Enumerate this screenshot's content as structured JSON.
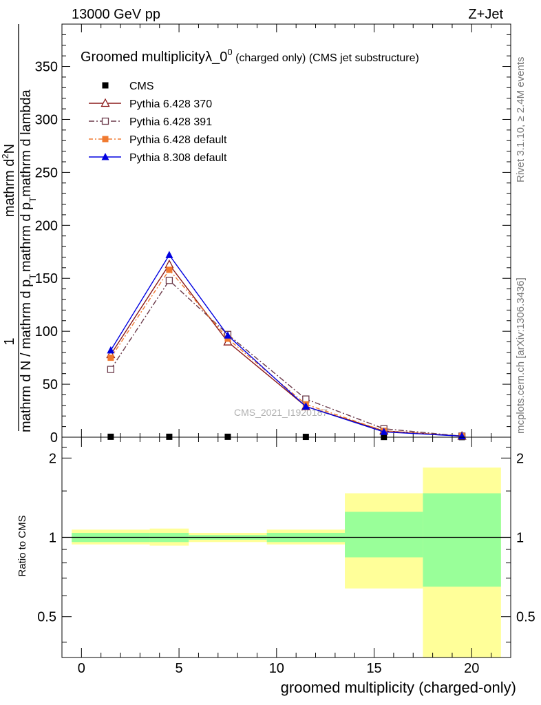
{
  "header": {
    "energy_label": "13000 GeV pp",
    "process_label": "Z+Jet"
  },
  "side_labels": {
    "rivet": "Rivet 3.1.10, ≥ 2.4M events",
    "mcplots": "mcplots.cern.ch [arXiv:1306.3436]"
  },
  "chart_data": [
    {
      "type": "line",
      "title_main": "Groomed multiplicityλ_0",
      "title_sup": "0",
      "title_tail": " (charged only) (CMS jet substructure)",
      "watermark": "CMS_2021_I1920187",
      "ylabel_parts": [
        "1",
        "mathrm d N / mathrm d p",
        "T",
        "mathrm d p",
        "T",
        "mathrm d lambda",
        "mathrm d",
        "2",
        "N"
      ],
      "x": [
        1.5,
        4.5,
        7.5,
        11.5,
        15.5,
        19.5
      ],
      "xlim": [
        -1,
        22
      ],
      "ylim": [
        0,
        390
      ],
      "yticks": [
        0,
        50,
        100,
        150,
        200,
        250,
        300,
        350
      ],
      "series": [
        {
          "name": "CMS",
          "color": "#000000",
          "marker": "square",
          "values": [
            0.4,
            0.4,
            0.4,
            0.3,
            0.2,
            0.1
          ]
        },
        {
          "name": "Pythia 6.428 370",
          "color": "#8b1a1a",
          "marker": "triangle-open",
          "dash": "",
          "values": [
            78,
            163,
            90,
            29,
            6,
            1
          ]
        },
        {
          "name": "Pythia 6.428 391",
          "color": "#6b3a4a",
          "marker": "square-open",
          "dash": "8,3,2,3",
          "values": [
            64,
            148,
            97,
            36,
            8,
            1
          ]
        },
        {
          "name": "Pythia 6.428 default",
          "color": "#f07a30",
          "marker": "square",
          "dash": "6,3,2,3",
          "values": [
            75,
            158,
            93,
            31,
            6,
            1
          ]
        },
        {
          "name": "Pythia 8.308 default",
          "color": "#0000e0",
          "marker": "triangle",
          "dash": "",
          "values": [
            82,
            172,
            96,
            29,
            5,
            1
          ]
        }
      ]
    },
    {
      "type": "area",
      "ylabel": "Ratio to CMS",
      "xlabel": "groomed multiplicity (charged-only)",
      "scale": "log",
      "ylim": [
        0.35,
        2.4
      ],
      "yticks": [
        0.5,
        1,
        2
      ],
      "xticks": [
        0,
        5,
        10,
        15,
        20
      ],
      "bins": [
        {
          "lo": -0.5,
          "hi": 3.5,
          "stat": [
            0.96,
            1.04
          ],
          "total": [
            0.94,
            1.07
          ]
        },
        {
          "lo": 3.5,
          "hi": 5.5,
          "stat": [
            0.96,
            1.04
          ],
          "total": [
            0.93,
            1.08
          ]
        },
        {
          "lo": 5.5,
          "hi": 9.5,
          "stat": [
            0.98,
            1.02
          ],
          "total": [
            0.96,
            1.04
          ]
        },
        {
          "lo": 9.5,
          "hi": 13.5,
          "stat": [
            0.96,
            1.04
          ],
          "total": [
            0.94,
            1.07
          ]
        },
        {
          "lo": 13.5,
          "hi": 17.5,
          "stat": [
            0.84,
            1.25
          ],
          "total": [
            0.64,
            1.47
          ]
        },
        {
          "lo": 17.5,
          "hi": 21.5,
          "stat": [
            0.65,
            1.47
          ],
          "total": [
            0.35,
            1.84
          ]
        }
      ],
      "colors": {
        "stat": "#99ff99",
        "total": "#ffff99"
      }
    }
  ]
}
